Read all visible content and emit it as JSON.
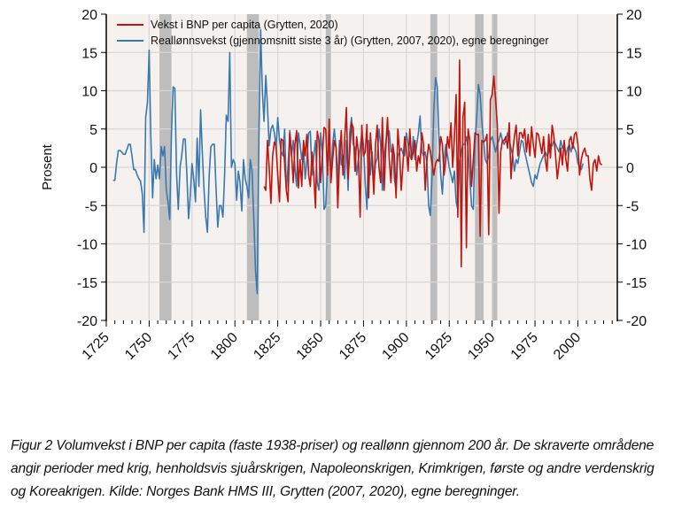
{
  "chart_data": {
    "type": "line",
    "title": "",
    "xlabel": "",
    "ylabel": "Prosent",
    "xlim": [
      1725,
      2023
    ],
    "ylim": [
      -20,
      20
    ],
    "x_ticks": [
      1725,
      1750,
      1775,
      1800,
      1825,
      1850,
      1875,
      1900,
      1925,
      1950,
      1975,
      2000
    ],
    "y_ticks": [
      -20,
      -15,
      -10,
      -5,
      0,
      5,
      10,
      15,
      20
    ],
    "y_tick_labels": [
      "-20",
      "-15",
      "-10",
      "-5",
      "0",
      "5",
      "10",
      "15",
      "20"
    ],
    "right_axis_mirror": true,
    "grid": true,
    "background": "#f4f1ee",
    "legend_position": "top-left",
    "shaded_periods": [
      {
        "name": "Sjuårskrigen",
        "start": 1756,
        "end": 1763
      },
      {
        "name": "Napoleonskrigen",
        "start": 1807,
        "end": 1814
      },
      {
        "name": "Krimkrigen",
        "start": 1853,
        "end": 1856
      },
      {
        "name": "Første verdenskrig",
        "start": 1914,
        "end": 1918
      },
      {
        "name": "Andre verdenskrig",
        "start": 1940,
        "end": 1945
      },
      {
        "name": "Koreakrigen",
        "start": 1950,
        "end": 1953
      }
    ],
    "shade_color": "#bdbdbd",
    "series": [
      {
        "name": "Vekst i BNP per capita (Grytten, 2020)",
        "color": "#c0140c",
        "x_start": 1817,
        "values": [
          -2.5,
          -3,
          3.5,
          0,
          -4.7,
          1.5,
          3.3,
          2.8,
          -1,
          -4.5,
          3.7,
          3.5,
          0.5,
          -3,
          -4.5,
          4.5,
          2,
          -2,
          3,
          4.8,
          -2.7,
          1,
          -2.5,
          3.5,
          1.5,
          4.3,
          -1,
          -2.5,
          2,
          -1,
          -5.3,
          4.7,
          3.5,
          -2,
          1.5,
          5.2,
          5,
          -1,
          6.3,
          -2,
          1,
          3.5,
          2.5,
          -5.3,
          1,
          4.8,
          -1,
          3.5,
          7.8,
          -1.5,
          2,
          5.8,
          5.2,
          -0.5,
          4,
          2,
          -6.5,
          5.5,
          1.5,
          2,
          5.6,
          -4,
          4.5,
          1,
          -3.5,
          3,
          5.5,
          0,
          -2,
          6.5,
          -3,
          2.5,
          6.5,
          1,
          -2,
          3,
          1.5,
          -4,
          5,
          2,
          -3,
          0.5,
          4,
          2.5,
          -0.5,
          5,
          1,
          2,
          3.5,
          -0.5,
          1.5,
          0.5,
          4.5,
          3,
          -3,
          1,
          3,
          2,
          0.5,
          -1,
          0.5,
          1,
          0.8,
          4,
          3,
          -1,
          1,
          4,
          2.5,
          5.8,
          0,
          4,
          9.5,
          -6.5,
          14,
          -13,
          6.5,
          8.5,
          -10.5,
          5,
          3.5,
          -2.5,
          1,
          4.5,
          4.3,
          4.3,
          -9,
          3.5,
          3.3,
          3.5,
          4.3,
          -8.8,
          8.8,
          9.5,
          11.9,
          9,
          5.5,
          -6,
          2,
          3.5,
          3.5,
          4,
          2.5,
          5.8,
          -1.5,
          2,
          4,
          5.5,
          1.5,
          4.5,
          4.5,
          3.8,
          5,
          2,
          4.3,
          1.5,
          5.3,
          3,
          1.3,
          4.5,
          4.3,
          3,
          1.8,
          4,
          1,
          -0.5,
          4.3,
          1.2,
          5.5,
          4,
          1.5,
          -1.5,
          0.5,
          2.5,
          0.3,
          3.5,
          1,
          -0.5,
          3.5,
          4,
          2.5,
          4.3,
          4.6,
          3,
          -1,
          1,
          2,
          2.5,
          1.5,
          1.5,
          -1.5,
          -3,
          0.5,
          1,
          -0.5,
          1.5,
          0.5,
          0.3
        ]
      },
      {
        "name": "Reallønnsvekst (gjennomsnitt siste 3 år) (Grytten, 2007, 2020), egne beregninger",
        "color": "#3a78b0",
        "x_start": 1729,
        "values": [
          -1.7,
          -1.7,
          0.5,
          2.2,
          2.2,
          2,
          1.7,
          1.7,
          2.3,
          3,
          3,
          1.5,
          -0.3,
          -0.3,
          -1,
          -1.5,
          -1.8,
          -3.5,
          -8.5,
          6.5,
          8.5,
          15.3,
          4,
          -4,
          1,
          -1.5,
          0.3,
          -1.5,
          2.7,
          1.5,
          2.7,
          -3,
          -4.5,
          -6.8,
          4.5,
          10.5,
          10.3,
          -1,
          -5.5,
          0,
          1.5,
          3.7,
          3.7,
          -1,
          -6.7,
          -3.5,
          0.5,
          -1.5,
          -4.5,
          3.8,
          -2.5,
          7.5,
          2,
          -3,
          -6.5,
          -8.5,
          -1,
          2.7,
          3,
          3,
          -2.7,
          -7.8,
          -5,
          -5,
          -6.5,
          -1,
          6.8,
          6,
          15,
          0,
          1,
          0.5,
          -4.3,
          -0.5,
          -2,
          -5.7,
          1,
          -1.5,
          -2.5,
          -4,
          1,
          -0.5,
          -6.5,
          -13.5,
          -16.5,
          3.5,
          18,
          10,
          6,
          12,
          8,
          2.8,
          5,
          5.5,
          4.5,
          2.5,
          6.5,
          3.5,
          2,
          1.5,
          5,
          -3,
          0,
          4.8,
          1.5,
          3.5,
          0,
          -2.5,
          4.5,
          3,
          1,
          2.5,
          -1.5,
          1,
          4.5,
          4.7,
          -1,
          1.5,
          3.5,
          -2,
          -3,
          4.5,
          2,
          -5.5,
          -5,
          0,
          2.3,
          -1,
          3,
          5,
          2.5,
          -2,
          3.5,
          0.3,
          1.5,
          -1.5,
          3.5,
          -3,
          4.5,
          6.5,
          3,
          2.5,
          -1,
          1,
          2.5,
          4.5,
          3,
          -2.2,
          -5.5,
          3.5,
          -1,
          2,
          -2,
          0.5,
          1.2,
          5,
          3,
          -3,
          1.5,
          3.3,
          5,
          4.7,
          2,
          2.5,
          -1.5,
          -3,
          1.5,
          2,
          2.5,
          1.8,
          1.5,
          4.5,
          3,
          1.5,
          1,
          4,
          1,
          3,
          4.5,
          6.7,
          2,
          1.5,
          2,
          0.5,
          -5,
          -6.3,
          -1,
          7.5,
          11.7,
          10.5,
          4,
          -1,
          -3.5,
          1,
          3,
          1.5,
          0,
          -1,
          -2,
          -0.5,
          -4.5,
          -5.5,
          0.5,
          2,
          3,
          3,
          4,
          2.5,
          -1.5,
          -5,
          -5.5,
          3,
          6.5,
          10.8,
          9.5,
          6,
          3.5,
          1,
          0.5,
          1.5,
          3.5,
          4,
          3,
          2,
          3,
          3.5,
          4.5,
          3.5,
          3,
          3.5,
          4.5,
          3.5,
          2.5,
          1.5,
          -0.5,
          1,
          0.5,
          2,
          3.5,
          3.3,
          2,
          1,
          0,
          -1,
          -2,
          -2.5,
          -1,
          -1.5,
          -0.5,
          0.5,
          1,
          1.5,
          2,
          1.5,
          2,
          3,
          2.8,
          3.5,
          3,
          2.5,
          2,
          3.5,
          2.5,
          3,
          1.5,
          2.5,
          3,
          2,
          3,
          2.5,
          2,
          0.5,
          0,
          -0.3,
          0.5
        ]
      }
    ]
  },
  "legend": {
    "items": [
      {
        "label": "Vekst i BNP per capita (Grytten, 2020)",
        "color": "#c0140c"
      },
      {
        "label": "Reallønnsvekst (gjennomsnitt siste 3 år) (Grytten, 2007, 2020), egne beregninger",
        "color": "#3a78b0"
      }
    ]
  },
  "caption": "Figur 2 Volumvekst i BNP per capita (faste 1938-priser) og reallønn gjennom 200 år. De skraverte områdene angir perioder med krig, henholdsvis sjuårskrigen, Napoleonskrigen, Krimkrigen, første og andre verdenskrig og Koreakrigen. Kilde: Norges Bank HMS III, Grytten (2007, 2020), egne beregninger."
}
